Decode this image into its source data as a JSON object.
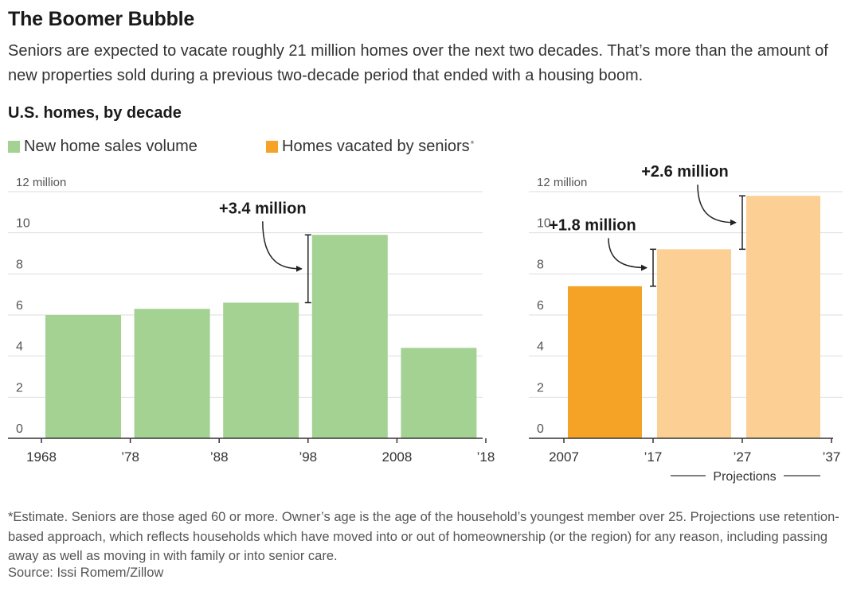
{
  "header": {
    "title": "The Boomer Bubble",
    "subtitle": "Seniors are expected to vacate roughly 21 million homes over the next two decades. That’s more than the amount of new properties sold during a previous two-decade period that ended with a housing boom.",
    "section_label": "U.S. homes, by decade"
  },
  "legend": {
    "green_label": "New home sales volume",
    "orange_label": "Homes vacated by seniors",
    "orange_marker": "*"
  },
  "colors": {
    "green": "#a3d292",
    "orange": "#f5a327",
    "light_orange": "#fcd094",
    "grid": "#dddddd",
    "axis": "#333333"
  },
  "chart_data": [
    {
      "type": "bar",
      "series_label": "New home sales volume",
      "categories": [
        "1968–78",
        "1978–88",
        "1988–98",
        "1998–2008",
        "2008–18"
      ],
      "values": [
        6.0,
        6.3,
        6.6,
        9.9,
        4.4
      ],
      "ytick_labels": [
        "0",
        "2",
        "4",
        "6",
        "8",
        "10",
        "12 million"
      ],
      "yticks": [
        0,
        2,
        4,
        6,
        8,
        10,
        12
      ],
      "ylim": [
        0,
        12
      ],
      "xtick_labels": [
        "1968",
        "’78",
        "’88",
        "’98",
        "2008",
        "’18"
      ],
      "annotations": [
        {
          "text": "+3.4 million",
          "from_value": 6.6,
          "to_value": 9.9
        }
      ],
      "grid": true
    },
    {
      "type": "bar",
      "series_label": "Homes vacated by seniors",
      "categories": [
        "2007–17",
        "2017–27",
        "2027–37"
      ],
      "values": [
        7.4,
        9.2,
        11.8
      ],
      "projected": [
        false,
        true,
        true
      ],
      "ytick_labels": [
        "0",
        "2",
        "4",
        "6",
        "8",
        "10",
        "12 million"
      ],
      "yticks": [
        0,
        2,
        4,
        6,
        8,
        10,
        12
      ],
      "ylim": [
        0,
        12
      ],
      "xtick_labels": [
        "2007",
        "’17",
        "’27",
        "’37"
      ],
      "projection_label": "Projections",
      "annotations": [
        {
          "text": "+1.8 million",
          "from_value": 7.4,
          "to_value": 9.2
        },
        {
          "text": "+2.6 million",
          "from_value": 9.2,
          "to_value": 11.8
        }
      ],
      "grid": true
    }
  ],
  "footer": {
    "note": "*Estimate. Seniors are those aged 60 or more. Owner’s age is the age of the household’s youngest member over 25. Projections use retention-based approach, which reflects households which have moved into or out of homeownership (or the region) for any reason, including passing away as well as moving in with family or into senior care.",
    "source": "Source: Issi Romem/Zillow"
  }
}
